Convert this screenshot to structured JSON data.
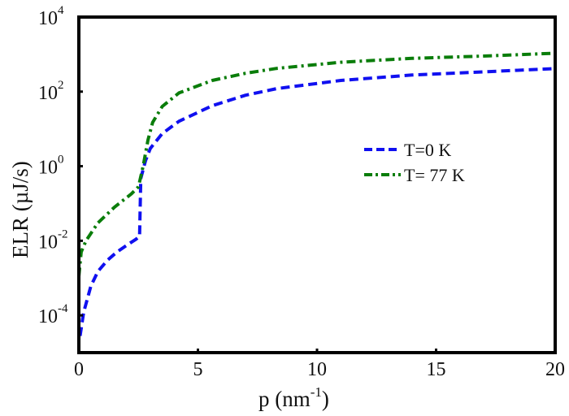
{
  "chart_data": {
    "type": "line",
    "title": "",
    "xlabel": "p (nm^-1)",
    "xlabel_parts": {
      "base": "p (nm",
      "sup": "-1",
      "close": ")"
    },
    "ylabel": "ELR (µJ/s)",
    "xlim": [
      0,
      20
    ],
    "ylim": [
      1e-05,
      10000.0
    ],
    "yscale": "log",
    "x_ticks": [
      0,
      5,
      10,
      15,
      20
    ],
    "x_tick_labels": [
      "0",
      "5",
      "10",
      "15",
      "20"
    ],
    "y_ticks": [
      0.0001,
      0.01,
      1.0,
      100.0,
      10000.0
    ],
    "y_tick_labels": [
      {
        "base": "10",
        "exp": "-4"
      },
      {
        "base": "10",
        "exp": "-2"
      },
      {
        "base": "10",
        "exp": "0"
      },
      {
        "base": "10",
        "exp": "2"
      },
      {
        "base": "10",
        "exp": "4"
      }
    ],
    "grid": false,
    "legend_position": "center-right",
    "series": [
      {
        "name": "T=0 K",
        "color": "#1010f0",
        "style": "dashed",
        "x": [
          0.05,
          0.2,
          0.5,
          0.8,
          1.2,
          1.6,
          2.0,
          2.4,
          2.55,
          2.6,
          2.8,
          3.0,
          3.5,
          4.2,
          5.6,
          7.0,
          8.3,
          11.0,
          14.0,
          17.0,
          20.0
        ],
        "y": [
          2.8e-05,
          0.00012,
          0.0006,
          0.0015,
          0.003,
          0.005,
          0.0075,
          0.011,
          0.013,
          0.47,
          1.4,
          3.0,
          7.5,
          16,
          42,
          80,
          120,
          200,
          280,
          340,
          415
        ]
      },
      {
        "name": "T= 77 K",
        "color": "#0a7d0a",
        "style": "dashdot",
        "x": [
          0.0,
          0.1,
          0.3,
          0.8,
          1.5,
          2.2,
          2.5,
          2.7,
          2.9,
          3.1,
          3.5,
          4.2,
          5.6,
          7.0,
          8.3,
          11.0,
          14.0,
          17.0,
          20.0
        ],
        "y": [
          0.0011,
          0.005,
          0.01,
          0.03,
          0.08,
          0.18,
          0.28,
          1.0,
          5.0,
          15,
          40,
          92,
          200,
          310,
          420,
          615,
          780,
          900,
          1070
        ]
      }
    ]
  }
}
